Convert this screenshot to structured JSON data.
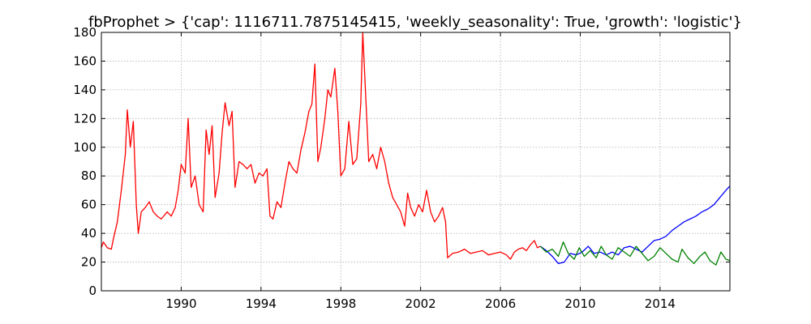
{
  "chart_data": {
    "type": "line",
    "title": "fbProphet > {'cap': 1116711.7875145415, 'weekly_seasonality': True, 'growth': 'logistic'}",
    "xlabel": "",
    "ylabel": "",
    "xlim": [
      1986.0,
      2017.5
    ],
    "ylim": [
      0,
      180
    ],
    "grid": true,
    "x_ticks": [
      1990,
      1994,
      1998,
      2002,
      2006,
      2010,
      2014
    ],
    "y_ticks": [
      0,
      20,
      40,
      60,
      80,
      100,
      120,
      140,
      160,
      180
    ],
    "series": [
      {
        "color": "#ff0000",
        "points": [
          [
            1986.0,
            30
          ],
          [
            1986.1,
            34
          ],
          [
            1986.3,
            30
          ],
          [
            1986.5,
            29
          ],
          [
            1986.6,
            36
          ],
          [
            1986.8,
            48
          ],
          [
            1987.0,
            70
          ],
          [
            1987.2,
            95
          ],
          [
            1987.3,
            126
          ],
          [
            1987.45,
            100
          ],
          [
            1987.6,
            118
          ],
          [
            1987.75,
            60
          ],
          [
            1987.85,
            40
          ],
          [
            1988.0,
            55
          ],
          [
            1988.2,
            58
          ],
          [
            1988.4,
            62
          ],
          [
            1988.6,
            55
          ],
          [
            1988.8,
            52
          ],
          [
            1989.0,
            50
          ],
          [
            1989.3,
            55
          ],
          [
            1989.5,
            52
          ],
          [
            1989.7,
            58
          ],
          [
            1989.85,
            70
          ],
          [
            1990.0,
            88
          ],
          [
            1990.2,
            82
          ],
          [
            1990.35,
            120
          ],
          [
            1990.5,
            72
          ],
          [
            1990.7,
            80
          ],
          [
            1990.9,
            60
          ],
          [
            1991.1,
            55
          ],
          [
            1991.25,
            112
          ],
          [
            1991.4,
            95
          ],
          [
            1991.55,
            115
          ],
          [
            1991.7,
            65
          ],
          [
            1991.9,
            82
          ],
          [
            1992.05,
            110
          ],
          [
            1992.2,
            131
          ],
          [
            1992.4,
            115
          ],
          [
            1992.55,
            125
          ],
          [
            1992.7,
            72
          ],
          [
            1992.9,
            90
          ],
          [
            1993.1,
            88
          ],
          [
            1993.3,
            85
          ],
          [
            1993.5,
            88
          ],
          [
            1993.7,
            75
          ],
          [
            1993.9,
            82
          ],
          [
            1994.1,
            80
          ],
          [
            1994.3,
            85
          ],
          [
            1994.45,
            52
          ],
          [
            1994.6,
            50
          ],
          [
            1994.8,
            62
          ],
          [
            1995.0,
            58
          ],
          [
            1995.2,
            75
          ],
          [
            1995.4,
            90
          ],
          [
            1995.6,
            85
          ],
          [
            1995.8,
            82
          ],
          [
            1996.0,
            98
          ],
          [
            1996.2,
            110
          ],
          [
            1996.4,
            125
          ],
          [
            1996.55,
            130
          ],
          [
            1996.7,
            158
          ],
          [
            1996.85,
            90
          ],
          [
            1997.0,
            100
          ],
          [
            1997.2,
            120
          ],
          [
            1997.35,
            140
          ],
          [
            1997.5,
            135
          ],
          [
            1997.7,
            155
          ],
          [
            1997.85,
            125
          ],
          [
            1998.0,
            80
          ],
          [
            1998.2,
            85
          ],
          [
            1998.4,
            118
          ],
          [
            1998.6,
            88
          ],
          [
            1998.8,
            92
          ],
          [
            1999.0,
            130
          ],
          [
            1999.1,
            180
          ],
          [
            1999.2,
            150
          ],
          [
            1999.4,
            90
          ],
          [
            1999.6,
            95
          ],
          [
            1999.8,
            85
          ],
          [
            2000.0,
            100
          ],
          [
            2000.2,
            90
          ],
          [
            2000.4,
            75
          ],
          [
            2000.6,
            65
          ],
          [
            2000.8,
            60
          ],
          [
            2001.0,
            55
          ],
          [
            2001.2,
            45
          ],
          [
            2001.35,
            68
          ],
          [
            2001.5,
            58
          ],
          [
            2001.7,
            52
          ],
          [
            2001.9,
            60
          ],
          [
            2002.1,
            55
          ],
          [
            2002.3,
            70
          ],
          [
            2002.5,
            55
          ],
          [
            2002.7,
            48
          ],
          [
            2002.9,
            52
          ],
          [
            2003.1,
            58
          ],
          [
            2003.25,
            48
          ],
          [
            2003.35,
            23
          ],
          [
            2003.6,
            26
          ],
          [
            2003.9,
            27
          ],
          [
            2004.2,
            29
          ],
          [
            2004.5,
            26
          ],
          [
            2004.8,
            27
          ],
          [
            2005.1,
            28
          ],
          [
            2005.4,
            25
          ],
          [
            2005.7,
            26
          ],
          [
            2006.0,
            27
          ],
          [
            2006.3,
            25
          ],
          [
            2006.5,
            22
          ],
          [
            2006.7,
            27
          ],
          [
            2006.9,
            29
          ],
          [
            2007.1,
            30
          ],
          [
            2007.3,
            28
          ],
          [
            2007.5,
            32
          ],
          [
            2007.7,
            35
          ],
          [
            2007.85,
            30
          ],
          [
            2008.0,
            31
          ]
        ]
      },
      {
        "color": "#0000ff",
        "points": [
          [
            2008.0,
            31
          ],
          [
            2008.3,
            28
          ],
          [
            2008.6,
            24
          ],
          [
            2008.9,
            19
          ],
          [
            2009.2,
            20
          ],
          [
            2009.5,
            26
          ],
          [
            2009.8,
            25
          ],
          [
            2010.1,
            27
          ],
          [
            2010.4,
            31
          ],
          [
            2010.7,
            26
          ],
          [
            2011.0,
            27
          ],
          [
            2011.3,
            25
          ],
          [
            2011.6,
            27
          ],
          [
            2011.9,
            25
          ],
          [
            2012.2,
            30
          ],
          [
            2012.5,
            31
          ],
          [
            2012.8,
            29
          ],
          [
            2013.1,
            27
          ],
          [
            2013.4,
            31
          ],
          [
            2013.7,
            35
          ],
          [
            2014.0,
            36
          ],
          [
            2014.3,
            38
          ],
          [
            2014.6,
            42
          ],
          [
            2014.9,
            45
          ],
          [
            2015.2,
            48
          ],
          [
            2015.5,
            50
          ],
          [
            2015.8,
            52
          ],
          [
            2016.1,
            55
          ],
          [
            2016.4,
            57
          ],
          [
            2016.7,
            60
          ],
          [
            2017.0,
            65
          ],
          [
            2017.3,
            70
          ],
          [
            2017.5,
            73
          ]
        ]
      },
      {
        "color": "#008000",
        "points": [
          [
            2008.0,
            31
          ],
          [
            2008.3,
            27
          ],
          [
            2008.6,
            29
          ],
          [
            2008.9,
            24
          ],
          [
            2009.15,
            34
          ],
          [
            2009.4,
            26
          ],
          [
            2009.7,
            22
          ],
          [
            2009.95,
            30
          ],
          [
            2010.2,
            24
          ],
          [
            2010.5,
            28
          ],
          [
            2010.8,
            23
          ],
          [
            2011.05,
            31
          ],
          [
            2011.3,
            25
          ],
          [
            2011.6,
            22
          ],
          [
            2011.9,
            30
          ],
          [
            2012.2,
            27
          ],
          [
            2012.5,
            24
          ],
          [
            2012.8,
            31
          ],
          [
            2013.1,
            26
          ],
          [
            2013.4,
            21
          ],
          [
            2013.7,
            24
          ],
          [
            2014.0,
            30
          ],
          [
            2014.3,
            26
          ],
          [
            2014.6,
            22
          ],
          [
            2014.9,
            20
          ],
          [
            2015.1,
            29
          ],
          [
            2015.4,
            23
          ],
          [
            2015.7,
            19
          ],
          [
            2016.0,
            24
          ],
          [
            2016.25,
            27
          ],
          [
            2016.5,
            21
          ],
          [
            2016.8,
            18
          ],
          [
            2017.05,
            27
          ],
          [
            2017.3,
            22
          ],
          [
            2017.5,
            21
          ]
        ]
      }
    ]
  }
}
